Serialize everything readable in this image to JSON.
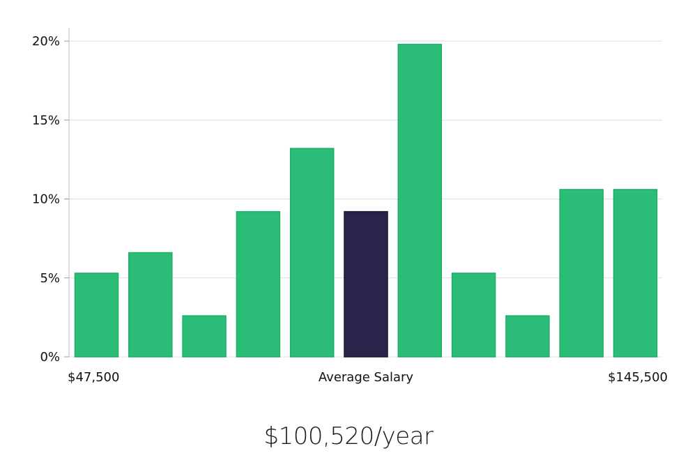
{
  "chart_data": {
    "type": "bar",
    "values": [
      5.3,
      6.6,
      2.6,
      9.2,
      13.2,
      9.2,
      19.8,
      5.3,
      2.6,
      10.6,
      10.6
    ],
    "highlight_index": 5,
    "ylim": [
      0,
      20
    ],
    "yticks": [
      "0%",
      "5%",
      "10%",
      "15%",
      "20%"
    ],
    "ytick_values": [
      0,
      5,
      10,
      15,
      20
    ],
    "x_labels": {
      "left": "$47,500",
      "center": "Average Salary",
      "right": "$145,500"
    },
    "colors": {
      "bar": "#2bbd77",
      "bar_edge": "#1fae68",
      "highlight": "#29254a",
      "highlight_edge": "#1a1733"
    }
  },
  "salary": "$100,520/year"
}
